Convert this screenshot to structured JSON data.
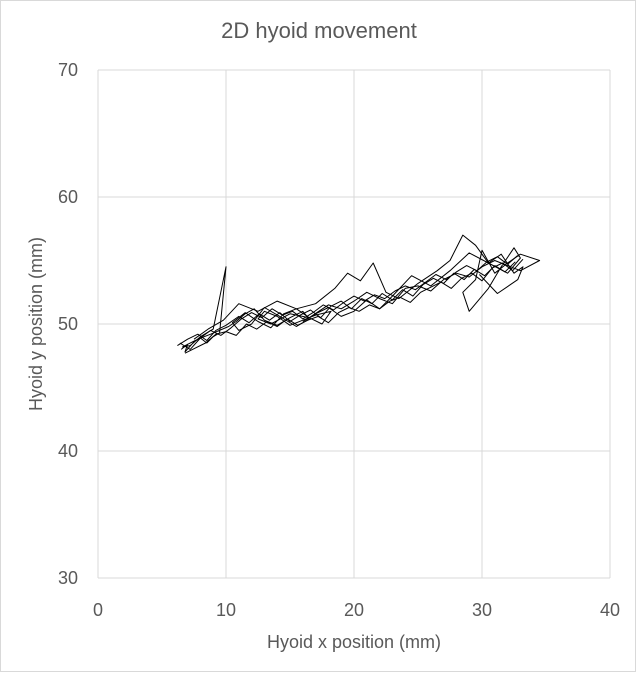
{
  "chart_data": {
    "type": "line",
    "title": "2D hyoid movement",
    "xlabel": "Hyoid x position (mm)",
    "ylabel": "Hyoid  y position  (mm)",
    "xlim": [
      0,
      40
    ],
    "ylim": [
      30,
      70
    ],
    "xticks": [
      "0",
      "10",
      "20",
      "30",
      "40"
    ],
    "yticks": [
      "30",
      "40",
      "50",
      "60",
      "70"
    ],
    "grid": true,
    "legend": "none",
    "colors": {
      "line": "#000000",
      "grid": "#d9d9d9",
      "text": "#595959"
    },
    "series": [
      {
        "x": [
          6.5,
          7.0,
          6.8,
          7.5,
          8.0,
          8.5,
          9.0,
          9.5,
          10.0,
          9.0,
          8.0,
          7.2,
          6.6,
          7.8,
          8.8,
          10.2,
          10.8,
          11.5,
          12.2,
          13.0,
          14.0,
          15.0,
          16.0,
          16.5,
          15.5,
          14.2,
          13.0,
          12.0,
          11.0,
          10.5,
          11.5,
          12.5,
          13.5,
          14.5,
          15.5,
          16.5,
          17.5,
          18.2,
          17.0,
          16.0,
          15.0,
          14.0,
          13.0,
          12.5,
          13.5,
          15.0,
          16.5,
          18.0,
          19.0,
          20.0,
          21.0,
          22.0,
          23.0,
          24.0,
          25.0,
          26.0,
          27.0,
          28.0,
          29.0,
          30.0,
          31.0,
          32.0,
          33.0,
          34.5,
          33.0,
          32.0,
          31.0,
          30.0,
          29.5,
          28.5,
          29.0,
          30.5,
          31.5,
          32.5,
          33.0,
          32.0,
          30.5,
          29.0,
          27.5,
          26.0,
          24.5,
          23.0,
          22.0,
          21.0,
          20.0,
          19.0,
          18.0,
          17.0,
          16.0
        ],
        "y": [
          48.0,
          48.4,
          47.8,
          48.6,
          48.9,
          48.5,
          49.0,
          49.3,
          54.5,
          49.6,
          49.0,
          48.3,
          48.2,
          48.8,
          49.2,
          49.8,
          50.2,
          50.8,
          51.2,
          50.3,
          49.9,
          50.5,
          51.0,
          50.4,
          49.8,
          50.6,
          51.3,
          50.0,
          49.5,
          50.1,
          50.9,
          50.2,
          49.7,
          50.8,
          51.2,
          50.5,
          50.0,
          51.0,
          50.7,
          50.3,
          49.9,
          50.6,
          51.0,
          50.4,
          50.0,
          50.8,
          50.5,
          51.5,
          51.2,
          51.8,
          52.5,
          52.0,
          51.6,
          52.8,
          53.0,
          52.6,
          53.5,
          54.0,
          53.7,
          54.5,
          55.0,
          54.6,
          54.2,
          55.0,
          55.5,
          54.8,
          54.0,
          55.8,
          53.5,
          52.5,
          51.0,
          52.8,
          54.5,
          56.0,
          55.2,
          54.0,
          54.8,
          55.6,
          54.2,
          53.0,
          53.8,
          52.2,
          51.2,
          51.9,
          51.0,
          50.6,
          51.3,
          50.8,
          50.2
        ]
      },
      {
        "x": [
          6.2,
          7.0,
          7.8,
          8.5,
          9.2,
          10.0,
          11.0,
          11.8,
          12.6,
          13.4,
          14.2,
          15.0,
          15.8,
          16.6,
          17.4,
          18.2,
          19.0,
          19.8,
          20.6,
          21.4,
          22.2,
          23.0,
          23.8,
          24.6,
          25.4,
          26.2,
          27.0,
          27.8,
          28.6,
          29.4,
          30.2,
          31.0,
          31.8,
          32.6
        ],
        "y": [
          48.3,
          48.8,
          49.2,
          48.7,
          49.5,
          49.9,
          50.6,
          50.1,
          50.8,
          50.3,
          50.9,
          50.2,
          50.7,
          51.1,
          50.5,
          51.4,
          51.8,
          51.2,
          52.0,
          51.6,
          52.4,
          51.9,
          52.7,
          52.2,
          53.1,
          53.6,
          53.2,
          54.0,
          53.5,
          54.3,
          53.8,
          54.6,
          54.1,
          54.9
        ]
      },
      {
        "x": [
          7.5,
          8.6,
          9.8,
          11.0,
          12.5,
          14.0,
          15.5,
          17.0,
          18.5,
          19.5,
          20.5,
          21.5,
          22.5,
          23.5,
          25.0,
          26.5,
          27.5,
          28.5,
          29.5,
          30.5,
          31.5,
          32.5,
          33.2,
          32.8,
          31.2,
          29.8
        ],
        "y": [
          48.8,
          49.6,
          50.3,
          51.6,
          51.0,
          51.8,
          51.2,
          51.6,
          52.8,
          54.0,
          53.4,
          54.8,
          52.5,
          52.0,
          53.2,
          54.2,
          55.0,
          57.0,
          56.2,
          54.8,
          55.5,
          54.0,
          54.5,
          53.5,
          52.4,
          53.9
        ]
      },
      {
        "x": [
          6.8,
          7.6,
          8.4,
          9.2,
          10.0,
          10.8,
          11.6,
          12.4,
          13.2,
          14.0,
          14.8,
          15.6,
          16.4,
          17.2,
          18.0,
          18.8,
          19.6,
          20.4,
          21.2,
          22.0,
          22.8,
          23.6,
          24.4,
          25.2,
          26.0,
          26.8,
          27.6,
          28.4,
          29.2,
          30.0,
          30.8,
          31.6,
          32.4,
          33.2
        ],
        "y": [
          47.7,
          48.1,
          48.5,
          49.2,
          49.4,
          49.1,
          50.0,
          49.6,
          50.2,
          49.8,
          50.4,
          49.9,
          50.3,
          50.6,
          50.1,
          50.9,
          51.3,
          51.0,
          51.5,
          51.2,
          51.8,
          52.1,
          51.7,
          52.5,
          52.9,
          53.3,
          52.8,
          53.6,
          54.0,
          53.4,
          54.4,
          54.8,
          54.2,
          55.1
        ]
      },
      {
        "x": [
          6.4,
          7.2,
          8.0,
          8.8,
          9.6,
          10.4,
          11.2,
          12.0,
          12.8,
          13.6,
          14.4,
          15.2,
          16.0,
          16.8,
          17.6,
          18.4,
          19.2,
          20.0,
          20.8,
          21.6,
          22.4,
          23.2,
          24.0,
          24.8,
          25.6,
          26.4,
          27.2,
          28.0,
          28.8,
          29.6,
          30.4,
          31.2,
          32.0,
          32.8
        ],
        "y": [
          48.5,
          48.0,
          48.9,
          49.5,
          49.1,
          49.7,
          50.4,
          50.9,
          50.5,
          51.2,
          50.7,
          51.0,
          50.4,
          50.9,
          51.5,
          51.1,
          51.7,
          52.2,
          51.8,
          52.3,
          52.0,
          52.6,
          53.0,
          52.7,
          53.3,
          53.9,
          53.5,
          54.1,
          54.6,
          54.2,
          54.9,
          55.3,
          54.7,
          55.4
        ]
      }
    ]
  }
}
